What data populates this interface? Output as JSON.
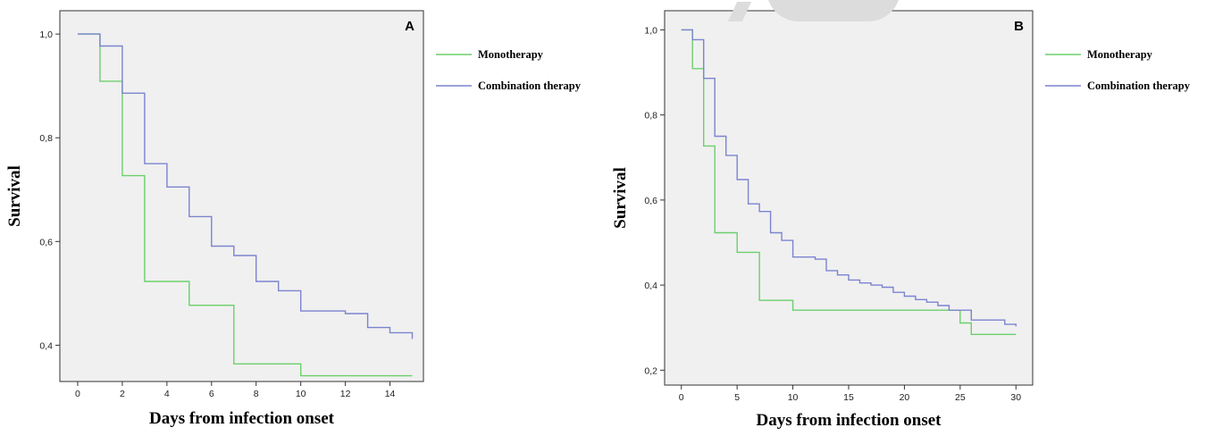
{
  "chart_data": [
    {
      "type": "line",
      "panel_label": "A",
      "xlabel": "Days from infection onset",
      "ylabel": "Survival",
      "xlim": [
        -0.8,
        15.5
      ],
      "ylim": [
        0.33,
        1.045
      ],
      "xticks": [
        0,
        2,
        4,
        6,
        8,
        10,
        12,
        14
      ],
      "xtick_labels": [
        "0",
        "2",
        "4",
        "6",
        "8",
        "10",
        "12",
        "14"
      ],
      "yticks": [
        0.4,
        0.6,
        0.8,
        1.0
      ],
      "ytick_labels": [
        "0,4",
        "0,6",
        "0,8",
        "1,0"
      ],
      "grid": false,
      "legend_position": "outside-right",
      "step": true,
      "series": [
        {
          "name": "Monotherapy",
          "color": "#6ccf6c",
          "x": [
            0,
            1,
            2,
            3,
            5,
            7,
            10,
            15
          ],
          "y": [
            1.0,
            0.909,
            0.727,
            0.523,
            0.477,
            0.364,
            0.341,
            0.341
          ]
        },
        {
          "name": "Combination therapy",
          "color": "#7b84cf",
          "x": [
            0,
            1,
            2,
            3,
            4,
            5,
            6,
            7,
            8,
            9,
            10,
            12,
            13,
            14,
            15
          ],
          "y": [
            1.0,
            0.977,
            0.886,
            0.75,
            0.705,
            0.648,
            0.591,
            0.573,
            0.523,
            0.505,
            0.466,
            0.461,
            0.434,
            0.424,
            0.412
          ]
        }
      ]
    },
    {
      "type": "line",
      "panel_label": "B",
      "xlabel": "Days from infection onset",
      "ylabel": "Survival",
      "xlim": [
        -1.5,
        31.5
      ],
      "ylim": [
        0.165,
        1.045
      ],
      "xticks": [
        0,
        5,
        10,
        15,
        20,
        25,
        30
      ],
      "xtick_labels": [
        "0",
        "5",
        "10",
        "15",
        "20",
        "25",
        "30"
      ],
      "yticks": [
        0.2,
        0.4,
        0.6,
        0.8,
        1.0
      ],
      "ytick_labels": [
        "0,2",
        "0,4",
        "0,6",
        "0,8",
        "1,0"
      ],
      "grid": false,
      "legend_position": "outside-right",
      "step": true,
      "series": [
        {
          "name": "Monotherapy",
          "color": "#6ccf6c",
          "x": [
            0,
            1,
            2,
            3,
            5,
            7,
            10,
            25,
            26,
            30
          ],
          "y": [
            1.0,
            0.909,
            0.727,
            0.523,
            0.477,
            0.364,
            0.341,
            0.311,
            0.284,
            0.284
          ]
        },
        {
          "name": "Combination therapy",
          "color": "#7b84cf",
          "x": [
            0,
            1,
            2,
            3,
            4,
            5,
            6,
            7,
            8,
            9,
            10,
            12,
            13,
            14,
            15,
            16,
            17,
            18,
            19,
            20,
            21,
            22,
            23,
            24,
            26,
            29,
            30
          ],
          "y": [
            1.0,
            0.977,
            0.886,
            0.75,
            0.705,
            0.648,
            0.591,
            0.573,
            0.523,
            0.505,
            0.466,
            0.461,
            0.434,
            0.424,
            0.412,
            0.405,
            0.4,
            0.395,
            0.383,
            0.374,
            0.366,
            0.36,
            0.352,
            0.341,
            0.318,
            0.308,
            0.303
          ]
        }
      ]
    }
  ]
}
